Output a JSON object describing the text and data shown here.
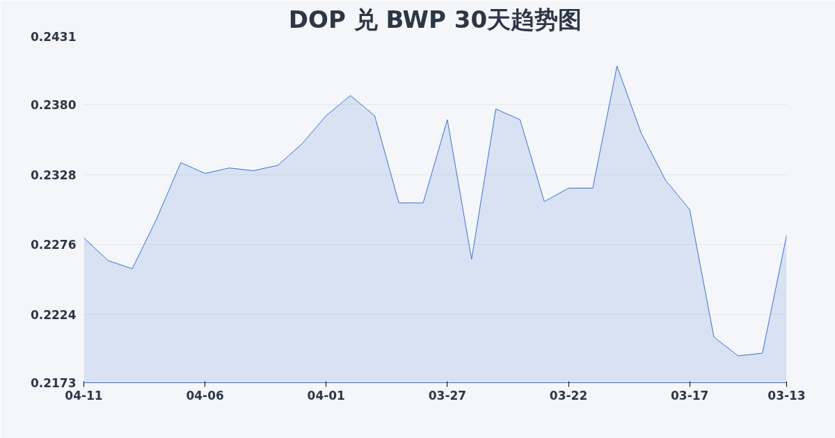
{
  "chart_data": {
    "type": "area",
    "title": "DOP 兑 BWP 30天趋势图",
    "categories": [
      "04-11",
      null,
      null,
      null,
      null,
      "04-06",
      null,
      null,
      null,
      null,
      "04-01",
      null,
      null,
      null,
      null,
      "03-27",
      null,
      null,
      null,
      null,
      "03-22",
      null,
      null,
      null,
      null,
      "03-17",
      null,
      null,
      null,
      "03-13"
    ],
    "series": [
      {
        "color": "#3a6fd0",
        "values": [
          0.2281,
          0.2264,
          0.2258,
          0.2295,
          0.2337,
          0.2329,
          0.2333,
          0.2331,
          0.2335,
          0.2351,
          0.2372,
          0.2387,
          0.2372,
          0.2307,
          0.2307,
          0.2369,
          0.2265,
          0.2377,
          0.2369,
          0.2308,
          0.2318,
          0.2318,
          0.2409,
          0.2359,
          0.2324,
          0.2302,
          0.2207,
          0.2193,
          0.2195,
          0.2283
        ]
      }
    ],
    "ylim": [
      0.2173,
      0.2431
    ],
    "yticks": [
      0.2173,
      0.2224,
      0.2276,
      0.2328,
      {
        "value": 0.238,
        "label": "0.2380"
      },
      0.2431
    ],
    "grid": "y"
  }
}
